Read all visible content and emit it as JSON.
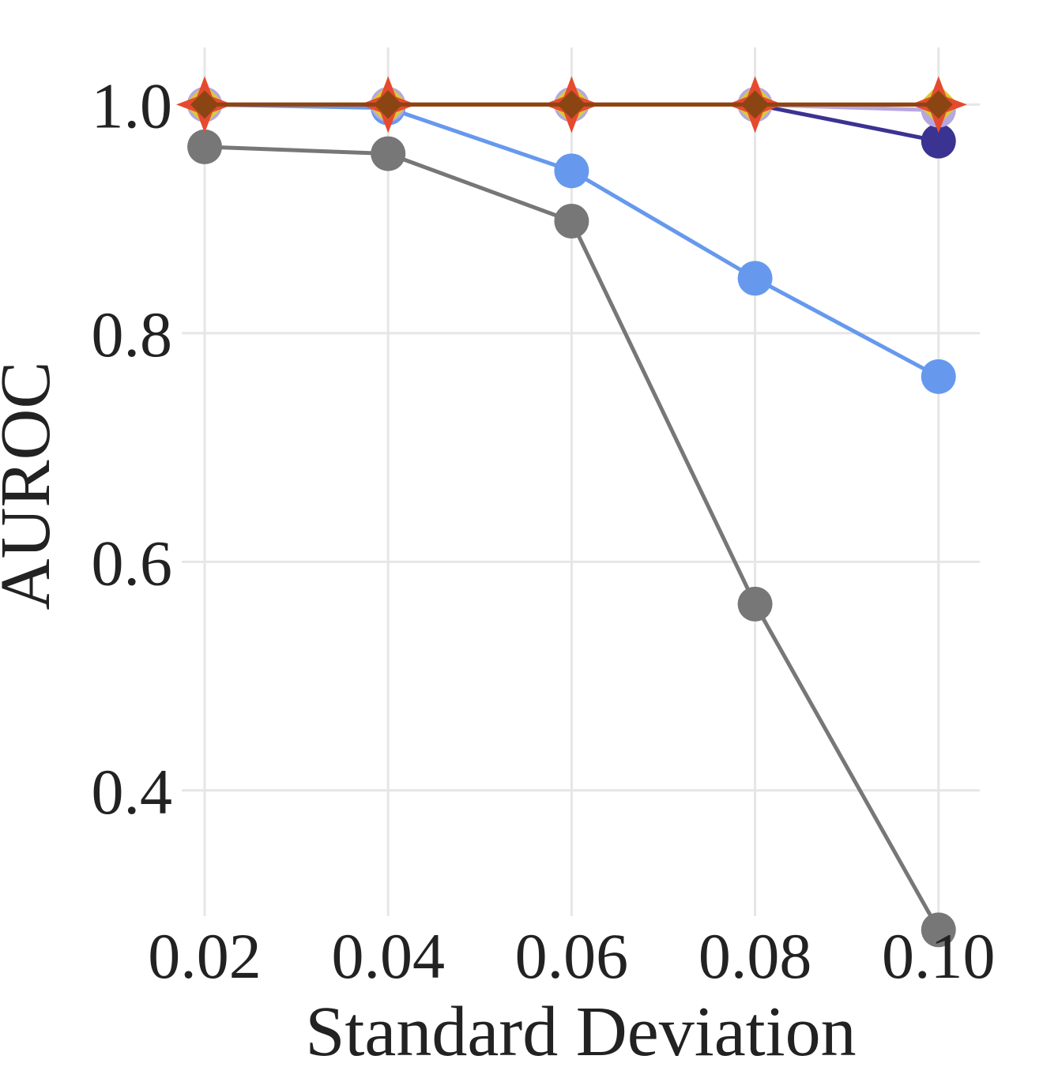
{
  "chart_data": {
    "type": "line",
    "xlabel": "Standard Deviation",
    "ylabel": "AUROC",
    "x": [
      0.02,
      0.04,
      0.06,
      0.08,
      0.1
    ],
    "x_tick_labels": [
      "0.02",
      "0.04",
      "0.06",
      "0.08",
      "0.10"
    ],
    "y_ticks": [
      0.4,
      0.6,
      0.8,
      1.0
    ],
    "y_tick_labels": [
      "0.4",
      "0.6",
      "0.8",
      "1.0"
    ],
    "xlim": [
      0.0175,
      0.1045
    ],
    "ylim": [
      0.29,
      1.05
    ],
    "grid": true,
    "legend": "none",
    "series": [
      {
        "color": "#777777",
        "marker": "circle",
        "values": [
          0.963,
          0.957,
          0.898,
          0.563,
          0.278
        ]
      },
      {
        "color": "#6699ee",
        "marker": "circle",
        "values": [
          1.0,
          0.997,
          0.942,
          0.848,
          0.762
        ]
      },
      {
        "color": "#3b3391",
        "marker": "circle",
        "values": [
          1.0,
          1.0,
          1.0,
          1.0,
          0.968
        ]
      },
      {
        "color": "#b6a7e0",
        "marker": "circle",
        "values": [
          1.0,
          1.0,
          1.0,
          1.0,
          0.995
        ]
      },
      {
        "color": "#d9cc35",
        "marker": "diamond",
        "values": [
          1.0,
          1.0,
          1.0,
          1.0,
          1.0
        ]
      },
      {
        "color": "#e64a2e",
        "marker": "star",
        "values": [
          1.0,
          1.0,
          1.0,
          1.0,
          1.0
        ]
      },
      {
        "color": "#8b4513",
        "marker": "diamond",
        "values": [
          1.0,
          1.0,
          1.0,
          1.0,
          1.0
        ]
      }
    ]
  }
}
